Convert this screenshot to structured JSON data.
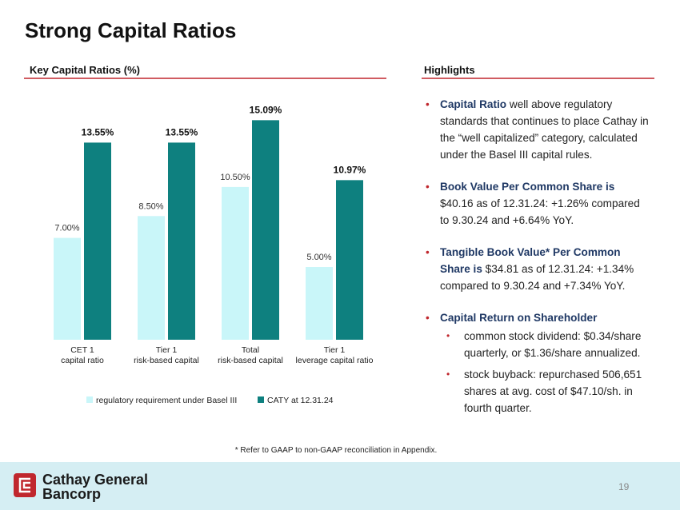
{
  "title": "Strong Capital Ratios",
  "chart_data": {
    "type": "bar",
    "title": "Key Capital Ratios (%)",
    "categories": [
      "CET 1\ncapital ratio",
      "Tier 1\nrisk-based capital",
      "Total\nrisk-based capital",
      "Tier 1\nleverage capital ratio"
    ],
    "series": [
      {
        "name": "regulatory requirement under Basel III",
        "color": "#c9f6f9",
        "values": [
          7.0,
          8.5,
          10.5,
          5.0
        ],
        "value_labels": [
          "7.00%",
          "8.50%",
          "10.50%",
          "5.00%"
        ]
      },
      {
        "name": "CATY at 12.31.24",
        "color": "#0e807f",
        "values": [
          13.55,
          13.55,
          15.09,
          10.97
        ],
        "value_labels": [
          "13.55%",
          "13.55%",
          "15.09%",
          "10.97%"
        ]
      }
    ]
  },
  "highlights": {
    "title": "Highlights",
    "items": [
      {
        "bold": "Capital Ratio",
        "text": " well above regulatory standards that continues to place Cathay in the “well capitalized” category, calculated under the Basel III capital rules."
      },
      {
        "bold": "Book Value Per Common Share is",
        "text": " $40.16 as of 12.31.24: +1.26% compared to 9.30.24 and +6.64% YoY."
      },
      {
        "bold": "Tangible Book Value* Per Common Share is",
        "text": " $34.81 as of 12.31.24: +1.34% compared to 9.30.24 and +7.34% YoY."
      },
      {
        "bold": "Capital Return on Shareholder",
        "sub": [
          "common stock dividend: $0.34/share quarterly, or $1.36/share annualized.",
          "stock buyback: repurchased 506,651 shares at avg. cost of $47.10/sh. in fourth quarter."
        ]
      }
    ]
  },
  "footnote": "* Refer to GAAP to non-GAAP reconciliation in Appendix.",
  "footer": {
    "company_line1": "Cathay General",
    "company_line2": "Bancorp",
    "page": "19"
  }
}
